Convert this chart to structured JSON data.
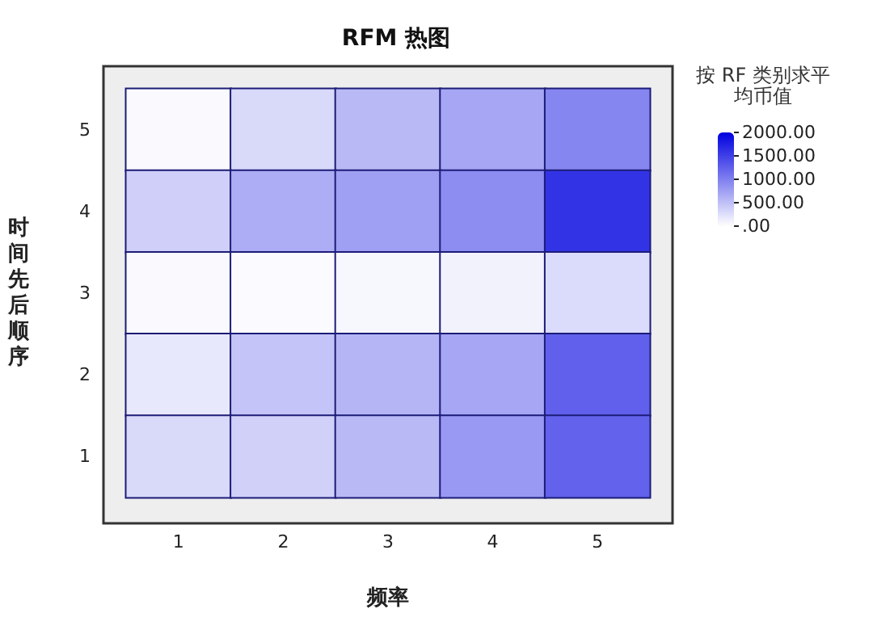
{
  "chart_data": {
    "type": "heatmap",
    "title": "RFM 热图",
    "xlabel": "频率",
    "ylabel": "时间先后顺序",
    "clabel": "按 RF 类别求平均币值",
    "categories": [
      "1",
      "2",
      "3",
      "4",
      "5"
    ],
    "y_categories": [
      "5",
      "4",
      "3",
      "2",
      "1"
    ],
    "cells": [
      [
        50,
        300,
        550,
        700,
        950
      ],
      [
        380,
        640,
        750,
        900,
        1600
      ],
      [
        50,
        30,
        60,
        100,
        280
      ],
      [
        180,
        460,
        580,
        700,
        1250
      ],
      [
        300,
        370,
        550,
        800,
        1230
      ]
    ],
    "clim": [
      0,
      2000
    ],
    "cticks": [
      {
        "value": 0,
        "label": ".00"
      },
      {
        "value": 500,
        "label": "500.00"
      },
      {
        "value": 1000,
        "label": "1000.00"
      },
      {
        "value": 1500,
        "label": "1500.00"
      },
      {
        "value": 2000,
        "label": "2000.00"
      }
    ]
  }
}
